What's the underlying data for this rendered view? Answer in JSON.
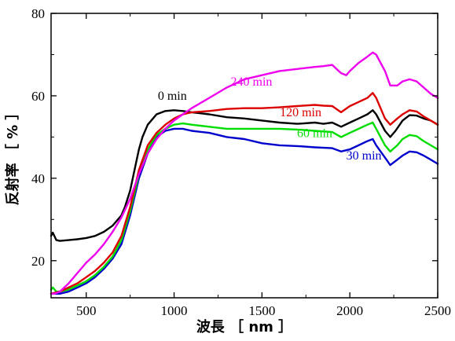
{
  "chart_data": {
    "type": "line",
    "xlabel": "波長 ［ nm ］",
    "ylabel": "反射率 ［ % ］",
    "xlim": [
      300,
      2500
    ],
    "ylim": [
      11,
      80
    ],
    "xticks": [
      500,
      1000,
      1500,
      2000,
      2500
    ],
    "yticks": [
      20,
      40,
      60,
      80
    ],
    "grid": false,
    "legend": "inline labels",
    "series": [
      {
        "name": "0 min",
        "color": "#000000",
        "x": [
          300,
          310,
          330,
          350,
          400,
          450,
          500,
          550,
          600,
          650,
          700,
          720,
          750,
          780,
          800,
          820,
          850,
          880,
          900,
          950,
          1000,
          1050,
          1100,
          1200,
          1300,
          1400,
          1500,
          1600,
          1700,
          1800,
          1850,
          1900,
          1950,
          2000,
          2050,
          2100,
          2130,
          2150,
          2200,
          2230,
          2260,
          2300,
          2340,
          2380,
          2420,
          2460,
          2500
        ],
        "y": [
          26,
          26.8,
          25,
          24.8,
          25,
          25.2,
          25.5,
          26,
          27,
          28.5,
          31,
          33,
          37,
          43,
          47,
          50,
          53,
          54.5,
          55.5,
          56.3,
          56.5,
          56.3,
          56,
          55.5,
          54.8,
          54.5,
          54,
          53.5,
          53.2,
          53.5,
          53.2,
          53.5,
          52.5,
          53.5,
          54.5,
          55.5,
          56.5,
          55.5,
          51.5,
          50,
          51.5,
          54,
          55.3,
          55.2,
          54.5,
          54,
          53
        ]
      },
      {
        "name": "30 min",
        "color": "#0000cc",
        "x": [
          300,
          350,
          400,
          450,
          500,
          550,
          600,
          650,
          700,
          750,
          800,
          850,
          900,
          950,
          1000,
          1050,
          1100,
          1200,
          1300,
          1400,
          1500,
          1600,
          1700,
          1800,
          1900,
          1950,
          2000,
          2050,
          2100,
          2130,
          2150,
          2200,
          2230,
          2270,
          2300,
          2340,
          2380,
          2420,
          2460,
          2500
        ],
        "y": [
          12,
          12,
          12.5,
          13.5,
          14.5,
          16,
          18,
          20.5,
          24,
          31,
          40,
          46,
          50,
          51.5,
          52,
          52,
          51.5,
          51,
          50,
          49.5,
          48.5,
          48,
          47.8,
          47.5,
          47.3,
          46.5,
          47,
          48,
          49,
          49.5,
          48,
          45,
          43.2,
          44.5,
          45.5,
          46.5,
          46.3,
          45.5,
          44.5,
          43.5
        ]
      },
      {
        "name": "60 min",
        "color": "#00dd00",
        "x": [
          300,
          310,
          330,
          350,
          400,
          450,
          500,
          550,
          600,
          650,
          700,
          750,
          800,
          850,
          900,
          950,
          1000,
          1050,
          1100,
          1200,
          1300,
          1400,
          1500,
          1600,
          1700,
          1800,
          1900,
          1950,
          2000,
          2050,
          2100,
          2130,
          2150,
          2200,
          2230,
          2270,
          2300,
          2340,
          2380,
          2420,
          2460,
          2500
        ],
        "y": [
          13,
          13.5,
          12.5,
          12.5,
          13,
          14,
          15,
          16.5,
          18.5,
          21,
          25,
          32,
          41,
          47,
          50.5,
          52,
          53,
          53.3,
          53,
          52.5,
          52,
          52,
          52,
          52,
          51.8,
          51.5,
          51.2,
          50,
          51,
          52,
          53,
          53.5,
          52,
          48,
          46.5,
          48,
          49.5,
          50.5,
          50.2,
          49,
          48,
          47
        ]
      },
      {
        "name": "120 min",
        "color": "#dd0000",
        "x": [
          300,
          350,
          400,
          450,
          500,
          550,
          600,
          650,
          700,
          750,
          800,
          850,
          900,
          950,
          1000,
          1050,
          1100,
          1200,
          1300,
          1400,
          1500,
          1600,
          1700,
          1800,
          1850,
          1900,
          1950,
          2000,
          2050,
          2100,
          2130,
          2150,
          2200,
          2230,
          2270,
          2300,
          2340,
          2380,
          2420,
          2460,
          2500
        ],
        "y": [
          12,
          12.5,
          13.5,
          14.5,
          16,
          17.5,
          19.5,
          22,
          26,
          33,
          42,
          48,
          51,
          53,
          54.5,
          55.5,
          56,
          56.3,
          56.8,
          57,
          57,
          57.2,
          57.5,
          57.8,
          57.6,
          57.5,
          56,
          57.5,
          58.5,
          59.5,
          60.7,
          59.5,
          54.5,
          53,
          54.5,
          55.5,
          56.5,
          56.2,
          55,
          54,
          53
        ]
      },
      {
        "name": "240 min",
        "color": "#ee00ee",
        "x": [
          300,
          320,
          350,
          400,
          450,
          500,
          550,
          600,
          650,
          700,
          750,
          800,
          850,
          900,
          950,
          1000,
          1050,
          1100,
          1200,
          1300,
          1400,
          1500,
          1600,
          1700,
          1800,
          1850,
          1900,
          1950,
          1980,
          2000,
          2050,
          2100,
          2130,
          2150,
          2200,
          2230,
          2270,
          2300,
          2340,
          2380,
          2420,
          2460,
          2500
        ],
        "y": [
          12,
          12,
          12.5,
          14.5,
          17,
          19.5,
          21.5,
          24,
          27,
          30.5,
          35,
          41,
          46,
          49.5,
          52,
          54,
          55.5,
          57,
          59.5,
          62,
          64,
          65,
          66,
          66.5,
          67,
          67.2,
          67.5,
          65.5,
          65,
          66,
          68,
          69.5,
          70.5,
          70,
          66,
          62.5,
          62.5,
          63.5,
          64,
          63.5,
          62,
          60.5,
          59.5
        ]
      }
    ],
    "annotations": [
      {
        "series": "0 min",
        "text": "0 min",
        "x": 990,
        "y": 59
      },
      {
        "series": "240 min",
        "text": "240 min",
        "x": 1440,
        "y": 62.5
      },
      {
        "series": "120 min",
        "text": "120 min",
        "x": 1720,
        "y": 55
      },
      {
        "series": "60 min",
        "text": "60 min",
        "x": 1800,
        "y": 50
      },
      {
        "series": "30 min",
        "text": "30 min",
        "x": 2080,
        "y": 44.5
      }
    ]
  }
}
